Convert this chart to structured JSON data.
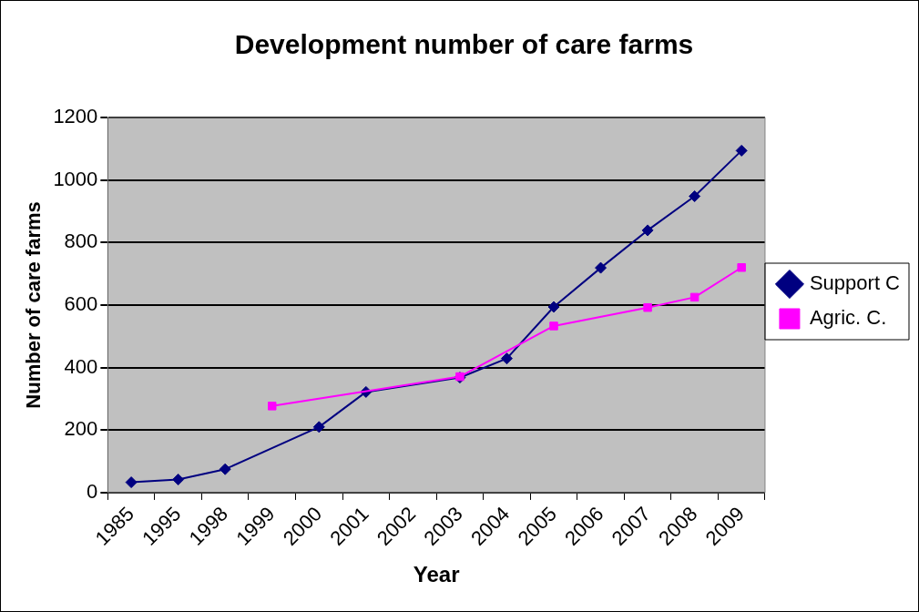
{
  "chart_data": {
    "type": "line",
    "title": "Development number of care farms",
    "xlabel": "Year",
    "ylabel": "Number of care farms",
    "categories": [
      "1985",
      "1995",
      "1998",
      "1999",
      "2000",
      "2001",
      "2002",
      "2003",
      "2004",
      "2005",
      "2006",
      "2007",
      "2008",
      "2009"
    ],
    "series": [
      {
        "name": "Support C",
        "color": "#000080",
        "marker": "diamond",
        "values": [
          33,
          42,
          75,
          null,
          210,
          322,
          null,
          368,
          429,
          594,
          719,
          839,
          948,
          1094
        ]
      },
      {
        "name": "Agric. C.",
        "color": "#ff00ff",
        "marker": "square",
        "values": [
          null,
          null,
          null,
          277,
          null,
          null,
          null,
          371,
          null,
          533,
          null,
          592,
          625,
          720
        ]
      }
    ],
    "ylim": [
      0,
      1200
    ],
    "yticks": [
      0,
      200,
      400,
      600,
      800,
      1000,
      1200
    ],
    "grid": "y",
    "legend": "right",
    "line_style": "solid"
  }
}
